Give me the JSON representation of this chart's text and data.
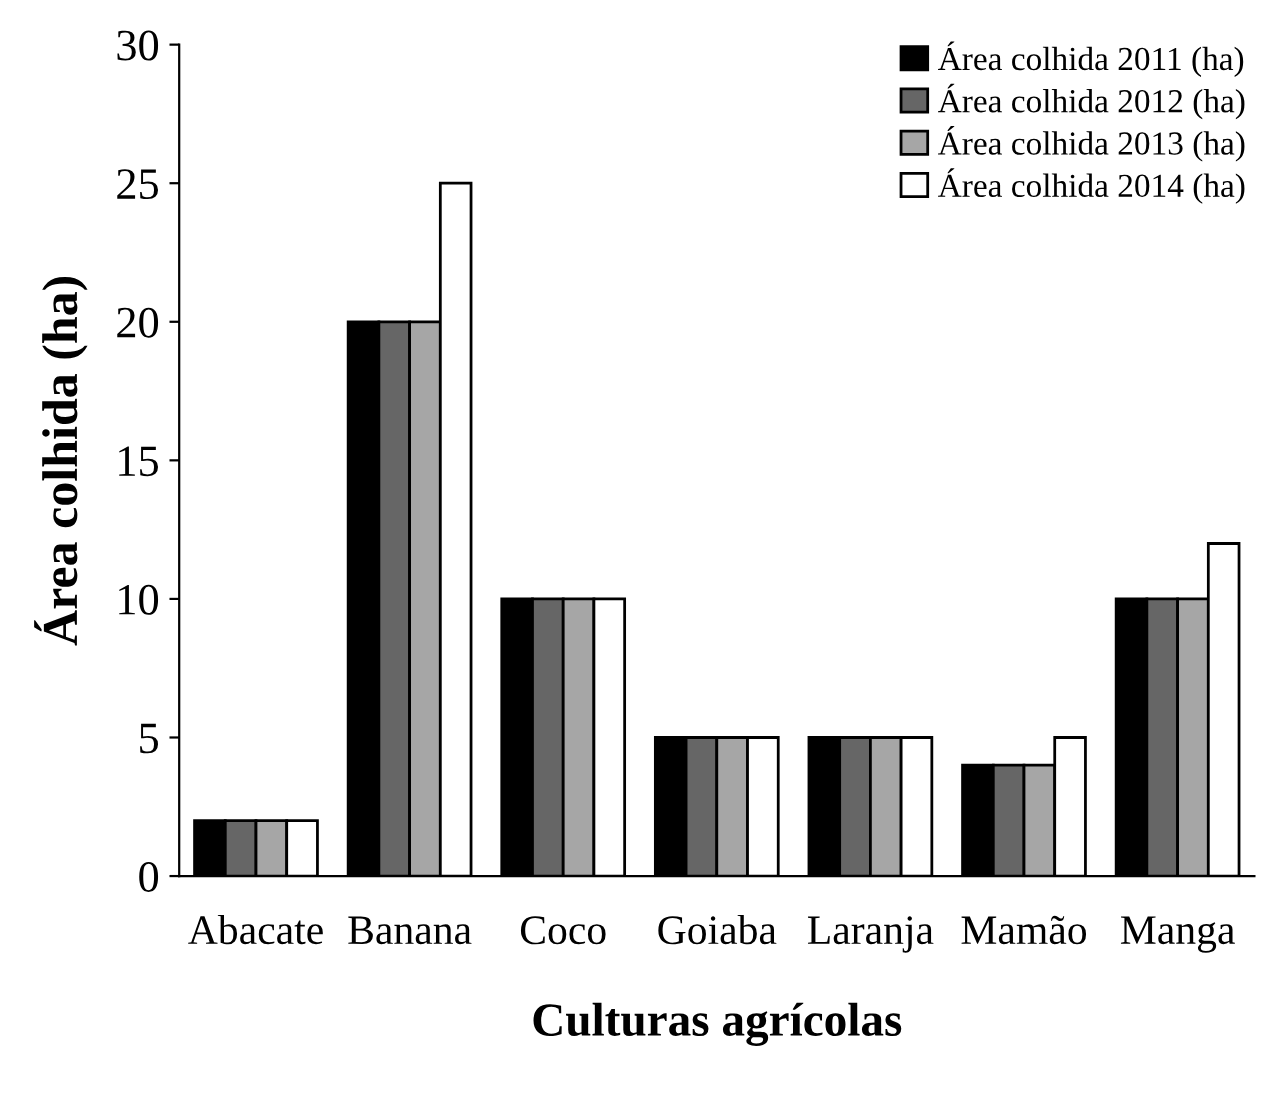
{
  "chart_data": {
    "type": "bar",
    "xlabel": "Culturas agrícolas",
    "ylabel": "Área colhida (ha)",
    "categories": [
      "Abacate",
      "Banana",
      "Coco",
      "Goiaba",
      "Laranja",
      "Mamão",
      "Manga"
    ],
    "series": [
      {
        "name": "Área colhida 2011 (ha)",
        "color": "#000000",
        "values": [
          2,
          20,
          10,
          5,
          5,
          4,
          10
        ]
      },
      {
        "name": "Área colhida 2012 (ha)",
        "color": "#666666",
        "values": [
          2,
          20,
          10,
          5,
          5,
          4,
          10
        ]
      },
      {
        "name": "Área colhida 2013 (ha)",
        "color": "#a6a6a6",
        "values": [
          2,
          20,
          10,
          5,
          5,
          4,
          10
        ]
      },
      {
        "name": "Área colhida 2014 (ha)",
        "color": "#ffffff",
        "values": [
          2,
          25,
          10,
          5,
          5,
          5,
          12
        ]
      }
    ],
    "ylim": [
      0,
      30
    ],
    "yticks": [
      0,
      5,
      10,
      15,
      20,
      25,
      30
    ],
    "grid": false,
    "legend": "top right"
  }
}
